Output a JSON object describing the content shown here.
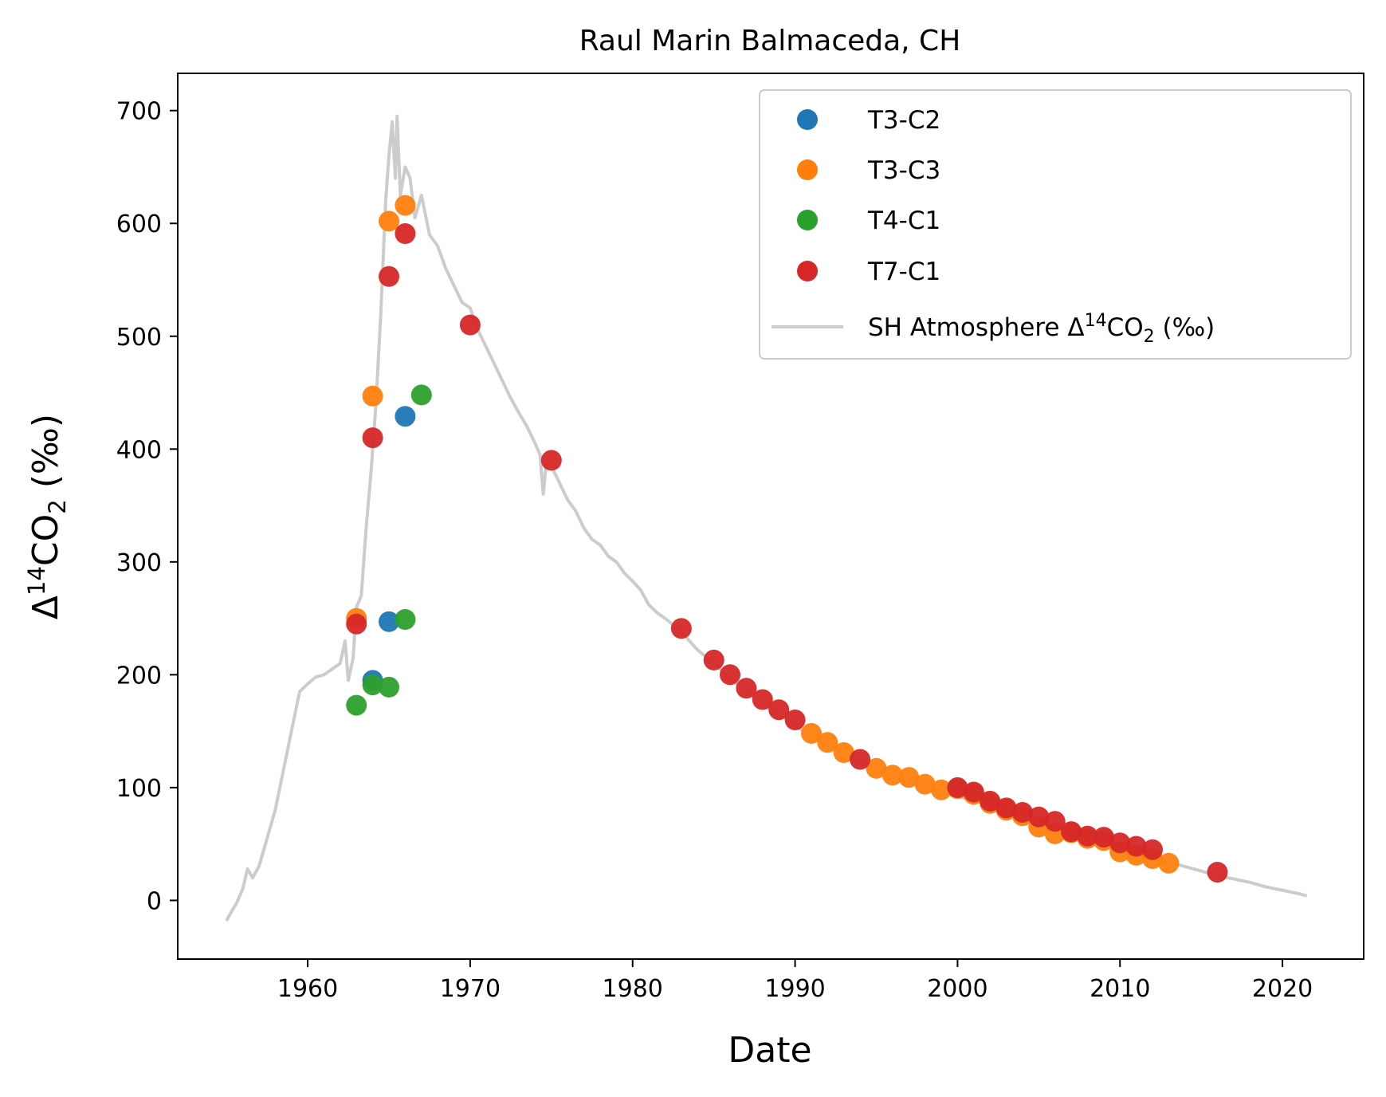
{
  "chart_data": {
    "type": "scatter",
    "title": "Raul Marin Balmaceda, CH",
    "xlabel": "Date",
    "ylabel": "Δ14CO2 (‰)",
    "xlim": [
      1952,
      2025
    ],
    "ylim": [
      -52,
      733
    ],
    "x_ticks": [
      1960,
      1970,
      1980,
      1990,
      2000,
      2010,
      2020
    ],
    "y_ticks": [
      0,
      100,
      200,
      300,
      400,
      500,
      600,
      700
    ],
    "grid": false,
    "legend_position": "top-right",
    "series": [
      {
        "name": "T3-C2",
        "color": "#1f77b4",
        "points": [
          [
            1964.0,
            195
          ],
          [
            1965.0,
            247
          ],
          [
            1966.0,
            429
          ]
        ]
      },
      {
        "name": "T3-C3",
        "color": "#ff7f0e",
        "points": [
          [
            1963.0,
            250
          ],
          [
            1964.0,
            447
          ],
          [
            1965.0,
            602
          ],
          [
            1966.0,
            616
          ],
          [
            1991.0,
            148
          ],
          [
            1992.0,
            140
          ],
          [
            1993.0,
            131
          ],
          [
            1995.0,
            117
          ],
          [
            1996.0,
            111
          ],
          [
            1997.0,
            109
          ],
          [
            1998.0,
            103
          ],
          [
            1999.0,
            98
          ],
          [
            2000.0,
            99
          ],
          [
            2001.0,
            94
          ],
          [
            2002.0,
            86
          ],
          [
            2003.0,
            80
          ],
          [
            2004.0,
            75
          ],
          [
            2005.0,
            65
          ],
          [
            2006.0,
            59
          ],
          [
            2007.0,
            60
          ],
          [
            2008.0,
            55
          ],
          [
            2009.0,
            53
          ],
          [
            2010.0,
            43
          ],
          [
            2011.0,
            40
          ],
          [
            2012.0,
            37
          ],
          [
            2013.0,
            33
          ]
        ]
      },
      {
        "name": "T4-C1",
        "color": "#2ca02c",
        "points": [
          [
            1963.0,
            173
          ],
          [
            1964.0,
            191
          ],
          [
            1965.0,
            189
          ],
          [
            1966.0,
            249
          ],
          [
            1967.0,
            448
          ]
        ]
      },
      {
        "name": "T7-C1",
        "color": "#d62728",
        "points": [
          [
            1963.0,
            245
          ],
          [
            1964.0,
            410
          ],
          [
            1965.0,
            553
          ],
          [
            1966.0,
            591
          ],
          [
            1970.0,
            510
          ],
          [
            1975.0,
            390
          ],
          [
            1983.0,
            241
          ],
          [
            1985.0,
            213
          ],
          [
            1986.0,
            200
          ],
          [
            1987.0,
            188
          ],
          [
            1988.0,
            178
          ],
          [
            1989.0,
            169
          ],
          [
            1990.0,
            160
          ],
          [
            1994.0,
            125
          ],
          [
            2000.0,
            100
          ],
          [
            2001.0,
            96
          ],
          [
            2002.0,
            88
          ],
          [
            2003.0,
            82
          ],
          [
            2004.0,
            78
          ],
          [
            2005.0,
            74
          ],
          [
            2006.0,
            70
          ],
          [
            2007.0,
            61
          ],
          [
            2008.0,
            57
          ],
          [
            2009.0,
            56
          ],
          [
            2010.0,
            51
          ],
          [
            2011.0,
            48
          ],
          [
            2012.0,
            45
          ],
          [
            2016.0,
            25
          ]
        ]
      },
      {
        "name": "SH Atmosphere Δ14CO2 (‰)",
        "kind": "line",
        "color": "#cccccc",
        "points": [
          [
            1955.0,
            -18
          ],
          [
            1955.3,
            -10
          ],
          [
            1955.6,
            -3
          ],
          [
            1956.0,
            10
          ],
          [
            1956.3,
            28
          ],
          [
            1956.6,
            20
          ],
          [
            1957.0,
            30
          ],
          [
            1957.5,
            55
          ],
          [
            1958.0,
            80
          ],
          [
            1958.5,
            115
          ],
          [
            1959.0,
            150
          ],
          [
            1959.5,
            185
          ],
          [
            1960.0,
            192
          ],
          [
            1960.5,
            198
          ],
          [
            1961.0,
            200
          ],
          [
            1961.5,
            205
          ],
          [
            1962.0,
            210
          ],
          [
            1962.3,
            230
          ],
          [
            1962.5,
            195
          ],
          [
            1962.8,
            215
          ],
          [
            1963.0,
            260
          ],
          [
            1963.3,
            270
          ],
          [
            1963.6,
            330
          ],
          [
            1963.9,
            380
          ],
          [
            1964.2,
            440
          ],
          [
            1964.5,
            520
          ],
          [
            1964.8,
            620
          ],
          [
            1965.0,
            660
          ],
          [
            1965.2,
            690
          ],
          [
            1965.4,
            640
          ],
          [
            1965.5,
            695
          ],
          [
            1965.7,
            625
          ],
          [
            1966.0,
            650
          ],
          [
            1966.3,
            640
          ],
          [
            1966.6,
            605
          ],
          [
            1967.0,
            625
          ],
          [
            1967.5,
            590
          ],
          [
            1968.0,
            580
          ],
          [
            1968.5,
            560
          ],
          [
            1969.0,
            545
          ],
          [
            1969.5,
            530
          ],
          [
            1970.0,
            525
          ],
          [
            1970.5,
            505
          ],
          [
            1971.0,
            490
          ],
          [
            1971.5,
            475
          ],
          [
            1972.0,
            460
          ],
          [
            1972.5,
            445
          ],
          [
            1973.0,
            432
          ],
          [
            1973.5,
            420
          ],
          [
            1974.0,
            405
          ],
          [
            1974.3,
            395
          ],
          [
            1974.5,
            360
          ],
          [
            1974.7,
            390
          ],
          [
            1975.0,
            385
          ],
          [
            1975.5,
            370
          ],
          [
            1976.0,
            355
          ],
          [
            1976.5,
            345
          ],
          [
            1977.0,
            330
          ],
          [
            1977.5,
            320
          ],
          [
            1978.0,
            315
          ],
          [
            1978.5,
            305
          ],
          [
            1979.0,
            300
          ],
          [
            1979.5,
            290
          ],
          [
            1980.0,
            283
          ],
          [
            1980.5,
            275
          ],
          [
            1981.0,
            262
          ],
          [
            1981.5,
            255
          ],
          [
            1982.0,
            250
          ],
          [
            1982.5,
            244
          ],
          [
            1983.0,
            238
          ],
          [
            1984.0,
            222
          ],
          [
            1985.0,
            210
          ],
          [
            1986.0,
            197
          ],
          [
            1987.0,
            185
          ],
          [
            1988.0,
            175
          ],
          [
            1989.0,
            166
          ],
          [
            1990.0,
            155
          ],
          [
            1991.0,
            146
          ],
          [
            1992.0,
            138
          ],
          [
            1993.0,
            130
          ],
          [
            1994.0,
            122
          ],
          [
            1995.0,
            115
          ],
          [
            1996.0,
            110
          ],
          [
            1997.0,
            105
          ],
          [
            1998.0,
            100
          ],
          [
            1999.0,
            96
          ],
          [
            2000.0,
            92
          ],
          [
            2001.0,
            89
          ],
          [
            2002.0,
            84
          ],
          [
            2003.0,
            79
          ],
          [
            2004.0,
            74
          ],
          [
            2005.0,
            69
          ],
          [
            2006.0,
            65
          ],
          [
            2007.0,
            60
          ],
          [
            2008.0,
            55
          ],
          [
            2009.0,
            51
          ],
          [
            2010.0,
            46
          ],
          [
            2011.0,
            42
          ],
          [
            2012.0,
            38
          ],
          [
            2013.0,
            34
          ],
          [
            2014.0,
            30
          ],
          [
            2015.0,
            26
          ],
          [
            2016.0,
            22
          ],
          [
            2017.0,
            19
          ],
          [
            2018.0,
            16
          ],
          [
            2019.0,
            12
          ],
          [
            2020.0,
            9
          ],
          [
            2021.0,
            6
          ],
          [
            2021.5,
            4
          ]
        ]
      }
    ]
  }
}
